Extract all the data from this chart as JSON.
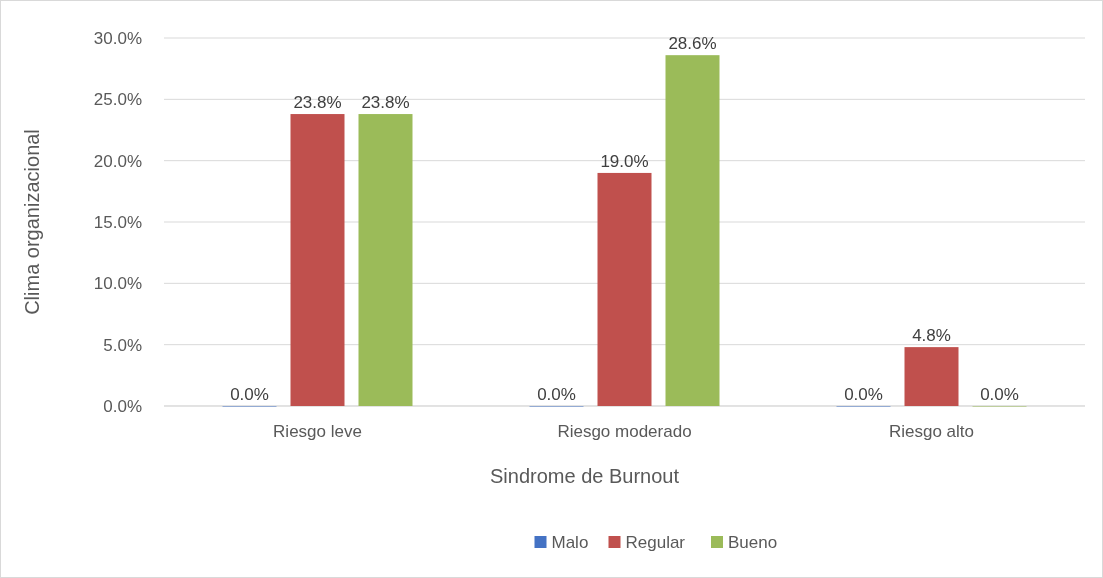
{
  "chart_data": {
    "type": "bar",
    "xlabel": "Sindrome de Burnout",
    "ylabel": "Clima organizacional",
    "categories": [
      "Riesgo leve",
      "Riesgo moderado",
      "Riesgo alto"
    ],
    "series": [
      {
        "name": "Malo",
        "color": "#4472c4",
        "values": [
          0,
          0,
          0
        ],
        "value_labels": [
          "0.0%",
          "0.0%",
          "0.0%"
        ]
      },
      {
        "name": "Regular",
        "color": "#c0504d",
        "values": [
          23.8,
          19.0,
          4.8
        ],
        "value_labels": [
          "23.8%",
          "19.0%",
          "4.8%"
        ]
      },
      {
        "name": "Bueno",
        "color": "#9bbb59",
        "values": [
          23.8,
          28.6,
          0
        ],
        "value_labels": [
          "23.8%",
          "28.6%",
          "0.0%"
        ]
      }
    ],
    "ylim": [
      0,
      30
    ],
    "yticks": [
      {
        "value": 0,
        "label": "0.0%"
      },
      {
        "value": 5,
        "label": "5.0%"
      },
      {
        "value": 10,
        "label": "10.0%"
      },
      {
        "value": 15,
        "label": "15.0%"
      },
      {
        "value": 20,
        "label": "20.0%"
      },
      {
        "value": 25,
        "label": "25.0%"
      },
      {
        "value": 30,
        "label": "30.0%"
      }
    ],
    "grid": "y",
    "legend": "bottom"
  }
}
